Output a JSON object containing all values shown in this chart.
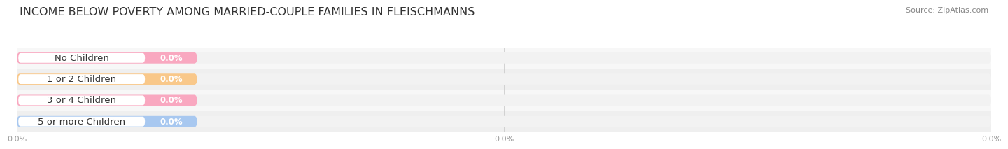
{
  "title": "INCOME BELOW POVERTY AMONG MARRIED-COUPLE FAMILIES IN FLEISCHMANNS",
  "source": "Source: ZipAtlas.com",
  "categories": [
    "No Children",
    "1 or 2 Children",
    "3 or 4 Children",
    "5 or more Children"
  ],
  "values": [
    0.0,
    0.0,
    0.0,
    0.0
  ],
  "bar_colors": [
    "#f9a8c0",
    "#f9c88a",
    "#f9a8c0",
    "#a8c8f0"
  ],
  "bar_colors_dark": [
    "#f48fb1",
    "#f6b45a",
    "#f48fb1",
    "#82b4e8"
  ],
  "label_bg_colors": [
    "#fce4ec",
    "#fff3e0",
    "#fce4ec",
    "#e3f2fd"
  ],
  "bar_track_color": "#f2f2f2",
  "bar_stripe_color": "#e8e8e8",
  "background_color": "#ffffff",
  "title_fontsize": 11.5,
  "label_fontsize": 9.5,
  "value_fontsize": 8.5,
  "source_fontsize": 8,
  "tick_fontsize": 8,
  "tick_color": "#999999",
  "xtick_labels": [
    "0.0%",
    "0.0%",
    "0.0%"
  ],
  "xtick_positions": [
    0.0,
    50.0,
    100.0
  ]
}
